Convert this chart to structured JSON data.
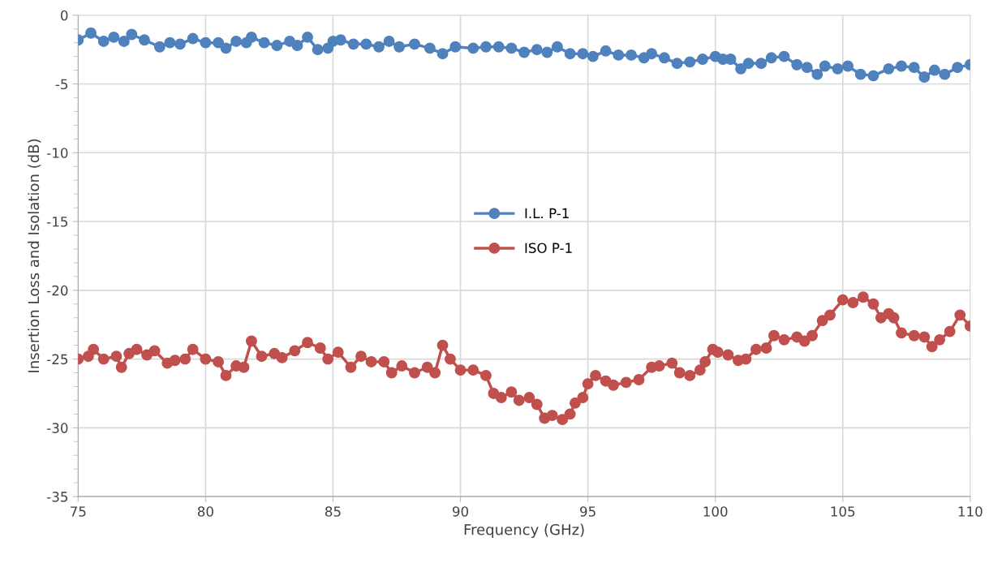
{
  "chart_data": {
    "type": "line",
    "xlabel": "Frequency (GHz)",
    "ylabel": "Insertion Loss and Isolation (dB)",
    "xlim": [
      75,
      110
    ],
    "xticks": [
      75,
      80,
      85,
      90,
      95,
      100,
      105,
      110
    ],
    "ylim": [
      -35,
      0
    ],
    "yticks": [
      -35,
      -30,
      -25,
      -20,
      -15,
      -10,
      -5,
      0
    ],
    "grid": true,
    "legend": "center",
    "marker": "circle",
    "line_style": "solid",
    "series": [
      {
        "name": "I.L. P-1",
        "color": "#4f81bd",
        "x": [
          75.0,
          75.5,
          76.0,
          76.4,
          76.8,
          77.1,
          77.6,
          78.2,
          78.6,
          79.0,
          79.5,
          80.0,
          80.5,
          80.8,
          81.2,
          81.6,
          81.8,
          82.3,
          82.8,
          83.3,
          83.6,
          84.0,
          84.4,
          84.8,
          85.0,
          85.3,
          85.8,
          86.3,
          86.8,
          87.2,
          87.6,
          88.2,
          88.8,
          89.3,
          89.8,
          90.5,
          91.0,
          91.5,
          92.0,
          92.5,
          93.0,
          93.4,
          93.8,
          94.3,
          94.8,
          95.2,
          95.7,
          96.2,
          96.7,
          97.2,
          97.5,
          98.0,
          98.5,
          99.0,
          99.5,
          100.0,
          100.3,
          100.6,
          101.0,
          101.3,
          101.8,
          102.2,
          102.7,
          103.2,
          103.6,
          104.0,
          104.3,
          104.8,
          105.2,
          105.7,
          106.2,
          106.8,
          107.3,
          107.8,
          108.2,
          108.6,
          109.0,
          109.5,
          110.0
        ],
        "values": [
          -1.8,
          -1.3,
          -1.9,
          -1.6,
          -1.9,
          -1.4,
          -1.8,
          -2.3,
          -2.0,
          -2.1,
          -1.7,
          -2.0,
          -2.0,
          -2.4,
          -1.9,
          -2.0,
          -1.6,
          -2.0,
          -2.2,
          -1.9,
          -2.2,
          -1.6,
          -2.5,
          -2.4,
          -1.9,
          -1.8,
          -2.1,
          -2.1,
          -2.3,
          -1.9,
          -2.3,
          -2.1,
          -2.4,
          -2.8,
          -2.3,
          -2.4,
          -2.3,
          -2.3,
          -2.4,
          -2.7,
          -2.5,
          -2.7,
          -2.3,
          -2.8,
          -2.8,
          -3.0,
          -2.6,
          -2.9,
          -2.9,
          -3.1,
          -2.8,
          -3.1,
          -3.5,
          -3.4,
          -3.2,
          -3.0,
          -3.2,
          -3.2,
          -3.9,
          -3.5,
          -3.5,
          -3.1,
          -3.0,
          -3.6,
          -3.8,
          -4.3,
          -3.7,
          -3.9,
          -3.7,
          -4.3,
          -4.4,
          -3.9,
          -3.7,
          -3.8,
          -4.5,
          -4.0,
          -4.3,
          -3.8,
          -3.6
        ]
      },
      {
        "name": "ISO P-1",
        "color": "#c0504d",
        "x": [
          75.0,
          75.4,
          75.6,
          76.0,
          76.5,
          76.7,
          77.0,
          77.3,
          77.7,
          78.0,
          78.5,
          78.8,
          79.2,
          79.5,
          80.0,
          80.5,
          80.8,
          81.2,
          81.5,
          81.8,
          82.2,
          82.7,
          83.0,
          83.5,
          84.0,
          84.5,
          84.8,
          85.2,
          85.7,
          86.1,
          86.5,
          87.0,
          87.3,
          87.7,
          88.2,
          88.7,
          89.0,
          89.3,
          89.6,
          90.0,
          90.5,
          91.0,
          91.3,
          91.6,
          92.0,
          92.3,
          92.7,
          93.0,
          93.3,
          93.6,
          94.0,
          94.3,
          94.5,
          94.8,
          95.0,
          95.3,
          95.7,
          96.0,
          96.5,
          97.0,
          97.5,
          97.8,
          98.3,
          98.6,
          99.0,
          99.4,
          99.6,
          99.9,
          100.1,
          100.5,
          100.9,
          101.2,
          101.6,
          102.0,
          102.3,
          102.7,
          103.2,
          103.5,
          103.8,
          104.2,
          104.5,
          105.0,
          105.4,
          105.8,
          106.2,
          106.5,
          106.8,
          107.0,
          107.3,
          107.8,
          108.2,
          108.5,
          108.8,
          109.2,
          109.6,
          110.0
        ],
        "values": [
          -25.0,
          -24.8,
          -24.3,
          -25.0,
          -24.8,
          -25.6,
          -24.6,
          -24.3,
          -24.7,
          -24.4,
          -25.3,
          -25.1,
          -25.0,
          -24.3,
          -25.0,
          -25.2,
          -26.2,
          -25.5,
          -25.6,
          -23.7,
          -24.8,
          -24.6,
          -24.9,
          -24.4,
          -23.8,
          -24.2,
          -25.0,
          -24.5,
          -25.6,
          -24.8,
          -25.2,
          -25.2,
          -26.0,
          -25.5,
          -26.0,
          -25.6,
          -26.0,
          -24.0,
          -25.0,
          -25.8,
          -25.8,
          -26.2,
          -27.5,
          -27.8,
          -27.4,
          -28.0,
          -27.8,
          -28.3,
          -29.3,
          -29.1,
          -29.4,
          -29.0,
          -28.2,
          -27.8,
          -26.8,
          -26.2,
          -26.6,
          -26.9,
          -26.7,
          -26.5,
          -25.6,
          -25.5,
          -25.3,
          -26.0,
          -26.2,
          -25.8,
          -25.2,
          -24.3,
          -24.5,
          -24.7,
          -25.1,
          -25.0,
          -24.3,
          -24.2,
          -23.3,
          -23.6,
          -23.4,
          -23.7,
          -23.3,
          -22.2,
          -21.8,
          -20.7,
          -20.9,
          -20.5,
          -21.0,
          -22.0,
          -21.7,
          -22.0,
          -23.1,
          -23.3,
          -23.4,
          -24.1,
          -23.6,
          -23.0,
          -21.8,
          -22.6
        ]
      }
    ]
  }
}
